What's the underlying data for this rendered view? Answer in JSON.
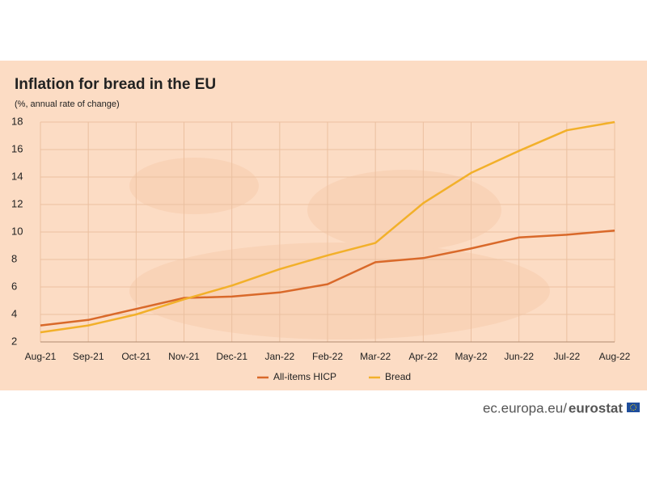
{
  "chart_data": {
    "type": "line",
    "title": "Inflation for bread in the EU",
    "subtitle": "(%, annual rate of change)",
    "categories": [
      "Aug-21",
      "Sep-21",
      "Oct-21",
      "Nov-21",
      "Dec-21",
      "Jan-22",
      "Feb-22",
      "Mar-22",
      "Apr-22",
      "May-22",
      "Jun-22",
      "Jul-22",
      "Aug-22"
    ],
    "series": [
      {
        "name": "All-items HICP",
        "color": "#d9692a",
        "values": [
          3.2,
          3.6,
          4.4,
          5.2,
          5.3,
          5.6,
          6.2,
          7.8,
          8.1,
          8.8,
          9.6,
          9.8,
          10.1
        ]
      },
      {
        "name": "Bread",
        "color": "#f2b02a",
        "values": [
          2.7,
          3.2,
          4.0,
          5.1,
          6.1,
          7.3,
          8.3,
          9.2,
          12.1,
          14.3,
          15.9,
          17.4,
          18.0
        ]
      }
    ],
    "ylim": [
      2,
      18
    ],
    "yticks": [
      2,
      4,
      6,
      8,
      10,
      12,
      14,
      16,
      18
    ],
    "grid": true
  },
  "footer": {
    "domain": "ec.europa.eu/",
    "brand": "eurostat"
  }
}
